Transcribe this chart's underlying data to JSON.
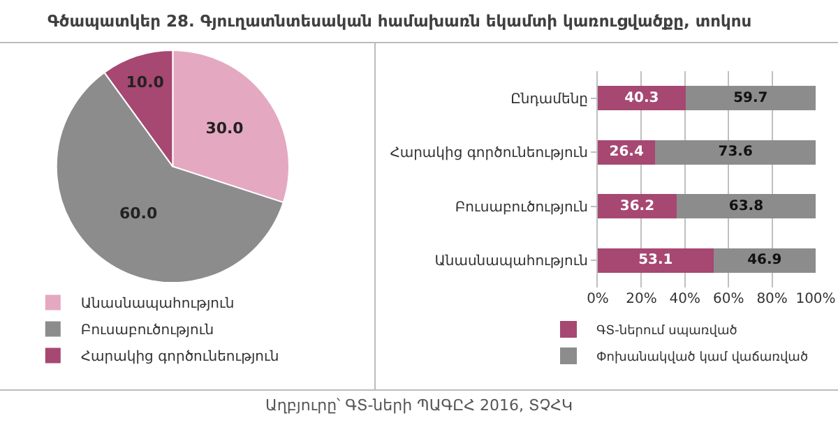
{
  "chart_data": [
    {
      "type": "pie",
      "title": "Գծապատկեր 28. Գյուղատնտեսական համախառն եկամտի կառուցվածքը, տոկոս",
      "categories": [
        "Անասնապահություն",
        "Բուսաբուծություն",
        "Հարակից գործունեություն"
      ],
      "values": [
        30.0,
        60.0,
        10.0
      ],
      "value_labels": [
        "30.0",
        "60.0",
        "10.0"
      ],
      "colors": [
        "#e4a9c0",
        "#8c8c8c",
        "#a64872"
      ],
      "legend": "bottom left"
    },
    {
      "type": "bar",
      "orientation": "horizontal",
      "stacked": true,
      "categories": [
        "Ընդամենը",
        "Հարակից գործունեություն",
        "Բուսաբուծություն",
        "Անասնապահություն"
      ],
      "series": [
        {
          "name": "ԳՏ-ներում սպառված",
          "color": "#a64872",
          "values": [
            40.3,
            26.4,
            36.2,
            53.1
          ]
        },
        {
          "name": "Փոխանակված կամ վաճառված",
          "color": "#8c8c8c",
          "values": [
            59.7,
            73.6,
            63.8,
            46.9
          ]
        }
      ],
      "xlim": [
        0,
        100
      ],
      "xticks": [
        {
          "value": 0,
          "label": "0%"
        },
        {
          "value": 20,
          "label": "20%"
        },
        {
          "value": 40,
          "label": "40%"
        },
        {
          "value": 60,
          "label": "60%"
        },
        {
          "value": 80,
          "label": "80%"
        },
        {
          "value": 100,
          "label": "100%"
        }
      ],
      "grid": "x",
      "legend": "bottom",
      "data_labels": true,
      "annotations": [
        "Աղբյուրը՝ ԳՏ-ների ՊԱԳԸՀ 2016, ՏՉՀԿ"
      ]
    }
  ]
}
